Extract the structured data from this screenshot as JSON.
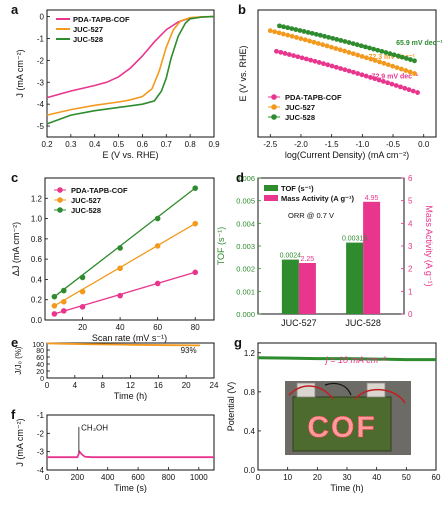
{
  "colors": {
    "pink": "#e8358e",
    "orange": "#f39a1e",
    "green": "#2e8b2e",
    "gray": "#c8c8c8",
    "ink": "#111111"
  },
  "chart_data": [
    {
      "id": "a",
      "panel_label": "a",
      "type": "line",
      "xlabel": "E (V vs. RHE)",
      "ylabel": "J (mA cm⁻²)",
      "xlim": [
        0.2,
        0.9
      ],
      "ylim": [
        -5.5,
        0.3
      ],
      "xticks": [
        0.2,
        0.3,
        0.4,
        0.5,
        0.6,
        0.7,
        0.8,
        0.9
      ],
      "xtick_labels": [
        "0.2",
        "0.3",
        "0.4",
        "0.5",
        "0.6",
        "0.7",
        "0.8",
        "0.9"
      ],
      "yticks": [
        -5,
        -4,
        -3,
        -2,
        -1,
        0
      ],
      "ytick_labels": [
        "-5",
        "-4",
        "-3",
        "-2",
        "-1",
        "0"
      ],
      "legend_position": "top-left",
      "series": [
        {
          "name": "PDA-TAPB-COF",
          "color_key": "pink",
          "x": [
            0.2,
            0.3,
            0.4,
            0.45,
            0.5,
            0.55,
            0.6,
            0.65,
            0.7,
            0.75,
            0.8,
            0.85,
            0.9
          ],
          "y": [
            -3.7,
            -3.4,
            -3.15,
            -3.0,
            -2.75,
            -2.35,
            -1.8,
            -1.15,
            -0.6,
            -0.25,
            -0.07,
            -0.02,
            0.0
          ]
        },
        {
          "name": "JUC-527",
          "color_key": "orange",
          "x": [
            0.2,
            0.3,
            0.4,
            0.5,
            0.55,
            0.6,
            0.64,
            0.67,
            0.7,
            0.73,
            0.76,
            0.8,
            0.85,
            0.9
          ],
          "y": [
            -4.5,
            -4.25,
            -4.05,
            -3.9,
            -3.8,
            -3.65,
            -3.3,
            -2.5,
            -1.4,
            -0.6,
            -0.2,
            -0.05,
            -0.01,
            0.0
          ]
        },
        {
          "name": "JUC-528",
          "color_key": "green",
          "x": [
            0.2,
            0.3,
            0.4,
            0.5,
            0.6,
            0.65,
            0.68,
            0.7,
            0.72,
            0.75,
            0.78,
            0.8,
            0.85,
            0.9
          ],
          "y": [
            -4.9,
            -4.5,
            -4.3,
            -4.15,
            -4.0,
            -3.85,
            -3.4,
            -2.8,
            -1.9,
            -0.9,
            -0.3,
            -0.1,
            -0.02,
            0.0
          ]
        }
      ]
    },
    {
      "id": "b",
      "panel_label": "b",
      "type": "scatter",
      "xlabel": "log(Current Density) (mA cm⁻²)",
      "ylabel": "E (V vs. RHE)",
      "xlim": [
        -2.7,
        0.2
      ],
      "ylim": [
        0.52,
        0.92
      ],
      "xticks": [
        -2.5,
        -2.0,
        -1.5,
        -1.0,
        -0.5,
        0.0
      ],
      "xtick_labels": [
        "-2.5",
        "-2.0",
        "-1.5",
        "-1.0",
        "-0.5",
        "0.0"
      ],
      "yticks": [],
      "ytick_labels": [],
      "legend_position": "bottom-left",
      "series": [
        {
          "name": "PDA-TAPB-COF",
          "color_key": "pink",
          "x_start": -2.4,
          "x_end": -0.1,
          "y_start": 0.79,
          "y_end": 0.66,
          "slope_label": "72.9 mV dec⁻¹",
          "label_x": -0.85,
          "label_y": 0.705
        },
        {
          "name": "JUC-527",
          "color_key": "orange",
          "x_start": -2.5,
          "x_end": -0.15,
          "y_start": 0.855,
          "y_end": 0.72,
          "slope_label": "72.3 mV dec⁻¹",
          "label_x": -0.9,
          "label_y": 0.765
        },
        {
          "name": "JUC-528",
          "color_key": "green",
          "x_start": -2.35,
          "x_end": -0.15,
          "y_start": 0.87,
          "y_end": 0.76,
          "slope_label": "65.9 mV dec⁻¹",
          "label_x": -0.45,
          "label_y": 0.81
        }
      ]
    },
    {
      "id": "c",
      "panel_label": "c",
      "type": "scatter",
      "xlabel": "Scan rate (mV s⁻¹)",
      "ylabel": "ΔJ (mA cm⁻²)",
      "xlim": [
        0,
        90
      ],
      "ylim": [
        0,
        1.4
      ],
      "xticks": [
        20,
        40,
        60,
        80
      ],
      "xtick_labels": [
        "20",
        "40",
        "60",
        "80"
      ],
      "yticks": [
        0.0,
        0.2,
        0.4,
        0.6,
        0.8,
        1.0,
        1.2
      ],
      "ytick_labels": [
        "0.0",
        "0.2",
        "0.4",
        "0.6",
        "0.8",
        "1.0",
        "1.2"
      ],
      "legend_position": "top-left",
      "series": [
        {
          "name": "PDA-TAPB-COF",
          "color_key": "pink",
          "x": [
            5,
            10,
            20,
            40,
            60,
            80
          ],
          "y": [
            0.06,
            0.09,
            0.13,
            0.24,
            0.36,
            0.47
          ]
        },
        {
          "name": "JUC-527",
          "color_key": "orange",
          "x": [
            5,
            10,
            20,
            40,
            60,
            80
          ],
          "y": [
            0.14,
            0.18,
            0.28,
            0.51,
            0.73,
            0.95
          ]
        },
        {
          "name": "JUC-528",
          "color_key": "green",
          "x": [
            5,
            10,
            20,
            40,
            60,
            80
          ],
          "y": [
            0.23,
            0.29,
            0.42,
            0.71,
            1.0,
            1.3
          ]
        }
      ]
    },
    {
      "id": "d",
      "panel_label": "d",
      "type": "bar",
      "categories": [
        "JUC-527",
        "JUC-528"
      ],
      "annotation": "ORR @ 0.7 V",
      "ylabel": "TOF (s⁻¹)",
      "ylabel_right": "Mass Activity (A g⁻¹)",
      "ylim": [
        0,
        0.006
      ],
      "ylim_right": [
        0,
        6
      ],
      "yticks": [
        0.0,
        0.001,
        0.002,
        0.003,
        0.004,
        0.005,
        0.006
      ],
      "ytick_labels": [
        "0.000",
        "0.001",
        "0.002",
        "0.003",
        "0.004",
        "0.005",
        "0.006"
      ],
      "yticks_right": [
        0,
        1,
        2,
        3,
        4,
        5,
        6
      ],
      "ytick_labels_right": [
        "0",
        "1",
        "2",
        "3",
        "4",
        "5",
        "6"
      ],
      "legend_position": "top-left",
      "series": [
        {
          "name": "TOF (s⁻¹)",
          "color_key": "green",
          "axis": "left",
          "values": [
            0.0024,
            0.00315
          ],
          "value_labels": [
            "0.0024",
            "0.00315"
          ]
        },
        {
          "name": "Mass Activity (A g⁻¹)",
          "color_key": "pink",
          "axis": "right",
          "values": [
            2.25,
            4.95
          ],
          "value_labels": [
            "2.25",
            "4.95"
          ]
        }
      ]
    },
    {
      "id": "e",
      "panel_label": "e",
      "type": "line",
      "xlabel": "Time (h)",
      "ylabel": "J/J₀ (%)",
      "xlim": [
        0,
        24
      ],
      "ylim": [
        0,
        100
      ],
      "xticks": [
        0,
        4,
        8,
        12,
        16,
        20,
        24
      ],
      "xtick_labels": [
        "0",
        "4",
        "8",
        "12",
        "16",
        "20",
        "24"
      ],
      "yticks": [
        0,
        20,
        40,
        60,
        80,
        100
      ],
      "ytick_labels": [
        "0",
        "20",
        "40",
        "60",
        "80",
        "100"
      ],
      "annotation": "93%",
      "series": [
        {
          "color_key": "orange",
          "x": [
            0,
            2,
            6,
            12,
            18,
            22
          ],
          "y": [
            99,
            98,
            96.5,
            95,
            93.8,
            93
          ]
        }
      ]
    },
    {
      "id": "f",
      "panel_label": "f",
      "type": "line",
      "xlabel": "Time (s)",
      "ylabel": "J (mA cm⁻²)",
      "xlim": [
        0,
        1100
      ],
      "ylim": [
        -4,
        -1
      ],
      "xticks": [
        0,
        200,
        400,
        600,
        800,
        1000
      ],
      "xtick_labels": [
        "0",
        "200",
        "400",
        "600",
        "800",
        "1000"
      ],
      "yticks": [
        -1,
        -2,
        -3,
        -4
      ],
      "ytick_labels": [
        "-1",
        "-2",
        "-3",
        "-4"
      ],
      "annotation": "CH₃OH",
      "series": [
        {
          "color_key": "pink",
          "x": [
            0,
            200,
            215,
            230,
            250,
            300,
            1100
          ],
          "y": [
            -3.3,
            -3.3,
            -3.0,
            -3.15,
            -3.28,
            -3.3,
            -3.3
          ]
        }
      ]
    },
    {
      "id": "g",
      "panel_label": "g",
      "type": "line",
      "xlabel": "Time (h)",
      "ylabel": "Potential (V)",
      "xlim": [
        0,
        60
      ],
      "ylim": [
        0,
        1.3
      ],
      "xticks": [
        0,
        10,
        20,
        30,
        40,
        50,
        60
      ],
      "xtick_labels": [
        "0",
        "10",
        "20",
        "30",
        "40",
        "50",
        "60"
      ],
      "yticks": [
        0.0,
        0.4,
        0.8,
        1.2
      ],
      "ytick_labels": [
        "0.0",
        "0.4",
        "0.8",
        "1.2"
      ],
      "annotation": "j = 10 mA cm⁻²",
      "inset_text": "COF",
      "series": [
        {
          "color_key": "green",
          "x": [
            0,
            10,
            20,
            30,
            40,
            50,
            60
          ],
          "y": [
            1.15,
            1.145,
            1.14,
            1.14,
            1.135,
            1.13,
            1.13
          ]
        }
      ]
    }
  ]
}
